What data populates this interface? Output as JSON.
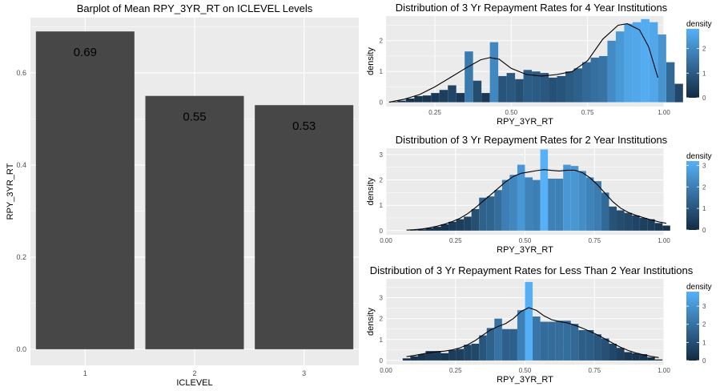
{
  "colors": {
    "panel_bg": "#ebebeb",
    "grid_major": "#ffffff",
    "bar_fill": "#474747",
    "density_low": "#132b43",
    "density_high": "#56b1f7",
    "curve": "#000000"
  },
  "chart_data": [
    {
      "id": "barplot",
      "type": "bar",
      "title": "Barplot of Mean RPY_3YR_RT on ICLEVEL Levels",
      "xlabel": "ICLEVEL",
      "ylabel": "RPY_3YR_RT",
      "categories": [
        "1",
        "2",
        "3"
      ],
      "values": [
        0.69,
        0.55,
        0.53
      ],
      "value_labels": [
        "0.69",
        "0.55",
        "0.53"
      ],
      "ylim": [
        0,
        0.72
      ],
      "yticks": [
        0.0,
        0.2,
        0.4,
        0.6
      ],
      "ytick_labels": [
        "0.0",
        "0.2",
        "0.4",
        "0.6"
      ],
      "grid": true
    },
    {
      "id": "hist-4yr",
      "type": "bar",
      "title": "Distribution of 3 Yr Repayment Rates for 4 Year Institutions",
      "xlabel": "RPY_3YR_RT",
      "ylabel": "density",
      "legend_title": "density",
      "legend_position": "right",
      "xlim": [
        0.09,
        1.0
      ],
      "ylim": [
        0,
        2.8
      ],
      "xticks": [
        0.25,
        0.5,
        0.75,
        1.0
      ],
      "xtick_labels": [
        "0.25",
        "0.50",
        "0.75",
        "1.00"
      ],
      "yticks": [
        0,
        1,
        2
      ],
      "ytick_labels": [
        "0",
        "1",
        "2"
      ],
      "legend_ticks": [
        0,
        1,
        2
      ],
      "legend_max": 2.8,
      "bin_start": 0.1,
      "bin_width": 0.0275,
      "densities": [
        0.02,
        0.05,
        0.12,
        0.2,
        0.22,
        0.3,
        0.4,
        0.55,
        0.3,
        1.65,
        0.7,
        0.3,
        1.95,
        0.85,
        0.95,
        0.75,
        1.05,
        1.0,
        0.95,
        0.8,
        0.85,
        1.0,
        1.1,
        1.3,
        1.45,
        1.5,
        2.0,
        2.3,
        2.55,
        2.6,
        2.7,
        2.6,
        2.2,
        1.3,
        0.6
      ],
      "curve_x": [
        0.1,
        0.15,
        0.2,
        0.25,
        0.3,
        0.35,
        0.4,
        0.43,
        0.46,
        0.5,
        0.55,
        0.6,
        0.65,
        0.7,
        0.75,
        0.8,
        0.85,
        0.88,
        0.92,
        0.95,
        0.98
      ],
      "curve_y": [
        0.0,
        0.1,
        0.25,
        0.5,
        0.8,
        1.1,
        1.38,
        1.45,
        1.4,
        1.1,
        0.9,
        0.85,
        0.9,
        1.0,
        1.35,
        2.05,
        2.5,
        2.55,
        2.35,
        1.8,
        0.8
      ]
    },
    {
      "id": "hist-2yr",
      "type": "bar",
      "title": "Distribution of 3 Yr Repayment Rates for 2 Year Institutions",
      "xlabel": "RPY_3YR_RT",
      "ylabel": "density",
      "legend_title": "density",
      "legend_position": "right",
      "xlim": [
        0.0,
        1.0
      ],
      "ylim": [
        0,
        3.25
      ],
      "xticks": [
        0.0,
        0.25,
        0.5,
        0.75,
        1.0
      ],
      "xtick_labels": [
        "0.00",
        "0.25",
        "0.50",
        "0.75",
        "1.00"
      ],
      "yticks": [
        0,
        1,
        2,
        3
      ],
      "ytick_labels": [
        "0",
        "1",
        "2",
        "3"
      ],
      "legend_ticks": [
        0,
        1,
        2,
        3
      ],
      "legend_max": 3.2,
      "bin_start": 0.06,
      "bin_width": 0.0275,
      "densities": [
        0.0,
        0.02,
        0.05,
        0.1,
        0.15,
        0.25,
        0.35,
        0.45,
        0.55,
        0.85,
        1.3,
        1.35,
        1.6,
        2.0,
        2.2,
        2.6,
        2.1,
        2.0,
        3.2,
        2.05,
        2.05,
        2.6,
        2.55,
        2.35,
        2.1,
        1.95,
        1.5,
        0.95,
        0.8,
        0.7,
        0.6,
        0.5,
        0.45,
        0.3,
        0.2
      ]
    },
    {
      "id": "hist-lt2yr",
      "type": "bar",
      "title": "Distribution of 3 Yr Repayment Rates for Less Than 2 Year Institutions",
      "xlabel": "RPY_3YR_RT",
      "ylabel": "density",
      "legend_title": "density",
      "legend_position": "right",
      "xlim": [
        0.0,
        1.0
      ],
      "ylim": [
        0,
        3.9
      ],
      "xticks": [
        0.0,
        0.25,
        0.5,
        0.75,
        1.0
      ],
      "xtick_labels": [
        "0.00",
        "0.25",
        "0.50",
        "0.75",
        "1.00"
      ],
      "yticks": [
        0,
        1,
        2,
        3
      ],
      "ytick_labels": [
        "0",
        "1",
        "2",
        "3"
      ],
      "legend_ticks": [
        0,
        1,
        2,
        3
      ],
      "legend_max": 3.8,
      "bin_start": 0.06,
      "bin_width": 0.0275,
      "densities": [
        0.1,
        0.2,
        0.3,
        0.45,
        0.45,
        0.35,
        0.5,
        0.55,
        0.75,
        0.8,
        1.2,
        1.55,
        2.0,
        1.5,
        1.5,
        2.4,
        3.75,
        2.1,
        1.85,
        1.85,
        1.9,
        1.9,
        1.75,
        1.45,
        1.45,
        1.25,
        1.05,
        0.8,
        0.6,
        0.4,
        0.35,
        0.3,
        0.15,
        0.05
      ]
    }
  ]
}
